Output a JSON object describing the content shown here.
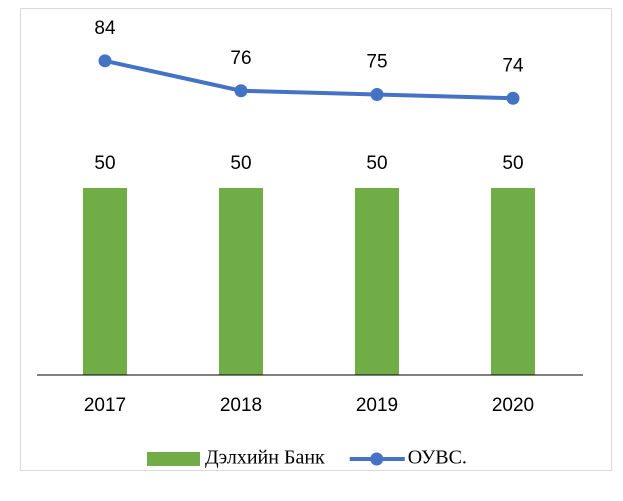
{
  "chart_data": {
    "type": "bar",
    "categories": [
      "2017",
      "2018",
      "2019",
      "2020"
    ],
    "series": [
      {
        "name": "Дэлхийн Банк",
        "type": "bar",
        "color": "#70ad47",
        "values": [
          50,
          50,
          50,
          50
        ]
      },
      {
        "name": "ОУВС.",
        "type": "line",
        "color": "#4472c4",
        "values": [
          84,
          76,
          75,
          74
        ]
      }
    ],
    "ylim": [
      0,
      100
    ],
    "legend": "bottom"
  }
}
